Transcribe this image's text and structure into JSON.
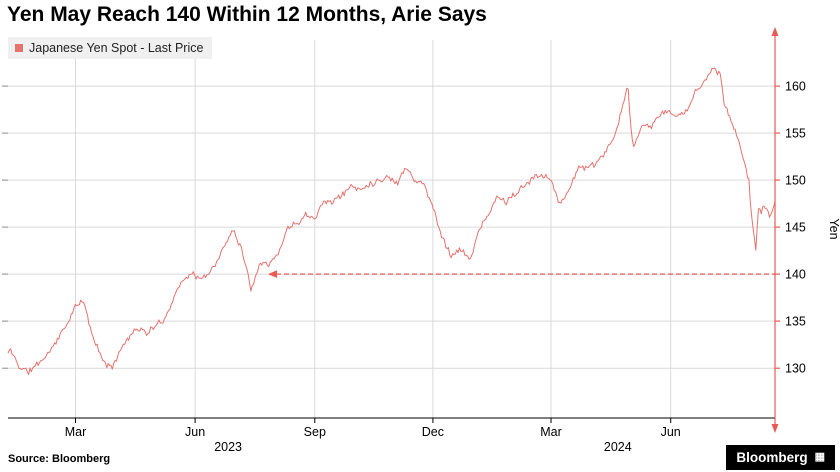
{
  "title": "Yen May Reach 140 Within 12 Months, Arie Says",
  "legend": {
    "label": "Japanese Yen Spot - Last Price"
  },
  "source": "Source: Bloomberg",
  "logo": "Bloomberg",
  "colors": {
    "series": "#e4736e",
    "axis_red": "#e85a53",
    "grid": "#d9d9d9",
    "axis_black": "#000000",
    "legend_bg": "#f0f0f0"
  },
  "chart_data": {
    "type": "line",
    "title": "Yen May Reach 140 Within 12 Months, Arie Says",
    "ylabel": "Yen",
    "ylim": [
      124.7,
      164.9
    ],
    "y_ticks": [
      130,
      135,
      140,
      145,
      150,
      155,
      160
    ],
    "x_ticks": [
      {
        "t": 0.088,
        "label": "Mar"
      },
      {
        "t": 0.244,
        "label": "Jun"
      },
      {
        "t": 0.4,
        "label": "Sep"
      },
      {
        "t": 0.554,
        "label": "Dec"
      },
      {
        "t": 0.708,
        "label": "Mar"
      },
      {
        "t": 0.864,
        "label": "Jun"
      }
    ],
    "year_labels": [
      {
        "t": 0.287,
        "label": "2023"
      },
      {
        "t": 0.795,
        "label": "2024"
      }
    ],
    "annotation": {
      "type": "arrow-left",
      "value": 140,
      "t_start": 0.339,
      "t_end": 1.0
    },
    "series": [
      {
        "name": "Japanese Yen Spot - Last Price",
        "points": [
          [
            0.0,
            131.6
          ],
          [
            0.003,
            132.0
          ],
          [
            0.015,
            130.1
          ],
          [
            0.027,
            129.6
          ],
          [
            0.039,
            130.5
          ],
          [
            0.051,
            131.4
          ],
          [
            0.063,
            132.9
          ],
          [
            0.075,
            134.4
          ],
          [
            0.086,
            136.3
          ],
          [
            0.098,
            137.2
          ],
          [
            0.11,
            133.5
          ],
          [
            0.122,
            131.1
          ],
          [
            0.134,
            129.9
          ],
          [
            0.146,
            131.9
          ],
          [
            0.158,
            133.4
          ],
          [
            0.169,
            134.3
          ],
          [
            0.181,
            133.7
          ],
          [
            0.193,
            134.5
          ],
          [
            0.205,
            135.3
          ],
          [
            0.217,
            137.7
          ],
          [
            0.229,
            139.6
          ],
          [
            0.241,
            140.0
          ],
          [
            0.253,
            139.4
          ],
          [
            0.264,
            140.3
          ],
          [
            0.276,
            141.9
          ],
          [
            0.288,
            143.9
          ],
          [
            0.293,
            144.9
          ],
          [
            0.305,
            142.6
          ],
          [
            0.317,
            138.4
          ],
          [
            0.329,
            141.4
          ],
          [
            0.341,
            141.1
          ],
          [
            0.353,
            142.2
          ],
          [
            0.364,
            144.9
          ],
          [
            0.376,
            145.4
          ],
          [
            0.388,
            146.3
          ],
          [
            0.4,
            146.1
          ],
          [
            0.412,
            147.7
          ],
          [
            0.424,
            147.8
          ],
          [
            0.436,
            148.4
          ],
          [
            0.447,
            149.4
          ],
          [
            0.459,
            149.0
          ],
          [
            0.471,
            149.6
          ],
          [
            0.483,
            149.9
          ],
          [
            0.495,
            150.4
          ],
          [
            0.507,
            149.6
          ],
          [
            0.519,
            151.5
          ],
          [
            0.531,
            149.9
          ],
          [
            0.542,
            149.6
          ],
          [
            0.554,
            147.1
          ],
          [
            0.566,
            144.0
          ],
          [
            0.578,
            141.9
          ],
          [
            0.59,
            142.7
          ],
          [
            0.602,
            141.4
          ],
          [
            0.614,
            144.7
          ],
          [
            0.625,
            146.0
          ],
          [
            0.637,
            148.2
          ],
          [
            0.649,
            147.7
          ],
          [
            0.661,
            148.5
          ],
          [
            0.673,
            149.3
          ],
          [
            0.685,
            150.3
          ],
          [
            0.697,
            150.6
          ],
          [
            0.708,
            150.2
          ],
          [
            0.72,
            147.2
          ],
          [
            0.732,
            149.2
          ],
          [
            0.744,
            151.4
          ],
          [
            0.756,
            151.3
          ],
          [
            0.768,
            151.8
          ],
          [
            0.78,
            153.2
          ],
          [
            0.792,
            154.7
          ],
          [
            0.803,
            158.3
          ],
          [
            0.808,
            160.2
          ],
          [
            0.812,
            156.0
          ],
          [
            0.815,
            153.1
          ],
          [
            0.827,
            155.9
          ],
          [
            0.839,
            155.7
          ],
          [
            0.851,
            157.1
          ],
          [
            0.863,
            157.3
          ],
          [
            0.875,
            156.7
          ],
          [
            0.886,
            157.5
          ],
          [
            0.898,
            159.7
          ],
          [
            0.91,
            160.8
          ],
          [
            0.919,
            161.8
          ],
          [
            0.928,
            161.5
          ],
          [
            0.934,
            158.0
          ],
          [
            0.942,
            156.4
          ],
          [
            0.954,
            153.8
          ],
          [
            0.966,
            150.1
          ],
          [
            0.969,
            146.7
          ],
          [
            0.975,
            142.4
          ],
          [
            0.978,
            147.0
          ],
          [
            0.981,
            146.6
          ],
          [
            0.988,
            147.3
          ],
          [
            0.993,
            146.2
          ],
          [
            1.0,
            147.6
          ]
        ]
      }
    ]
  }
}
